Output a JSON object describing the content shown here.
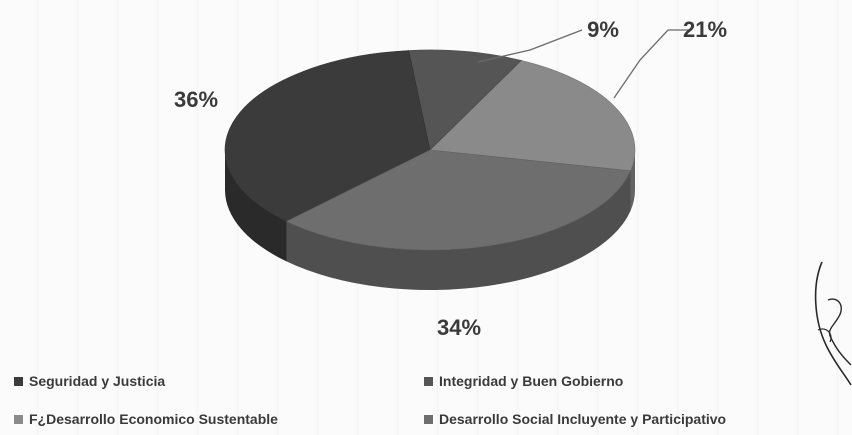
{
  "chart_data": {
    "type": "pie",
    "style": "3d",
    "title": "",
    "slices": [
      {
        "label": "Seguridad y Justicia",
        "value": 36,
        "display": "36%",
        "color": "#3b3b3b"
      },
      {
        "label": "Integridad y Buen Gobierno",
        "value": 9,
        "display": "9%",
        "color": "#555555"
      },
      {
        "label": "F¿Desarrollo Economico Sustentable",
        "value": 21,
        "display": "21%",
        "color": "#8a8a8a"
      },
      {
        "label": "Desarrollo Social Incluyente y Participativo",
        "value": 34,
        "display": "34%",
        "color": "#6e6e6e"
      }
    ],
    "legend_position": "bottom"
  },
  "legend": {
    "items": [
      {
        "label": "Seguridad y Justicia",
        "color": "#3b3b3b"
      },
      {
        "label": "Integridad y Buen Gobierno",
        "color": "#555555"
      },
      {
        "label": "F¿Desarrollo Economico Sustentable",
        "color": "#8a8a8a"
      },
      {
        "label": "Desarrollo Social Incluyente y Participativo",
        "color": "#6e6e6e"
      }
    ]
  }
}
